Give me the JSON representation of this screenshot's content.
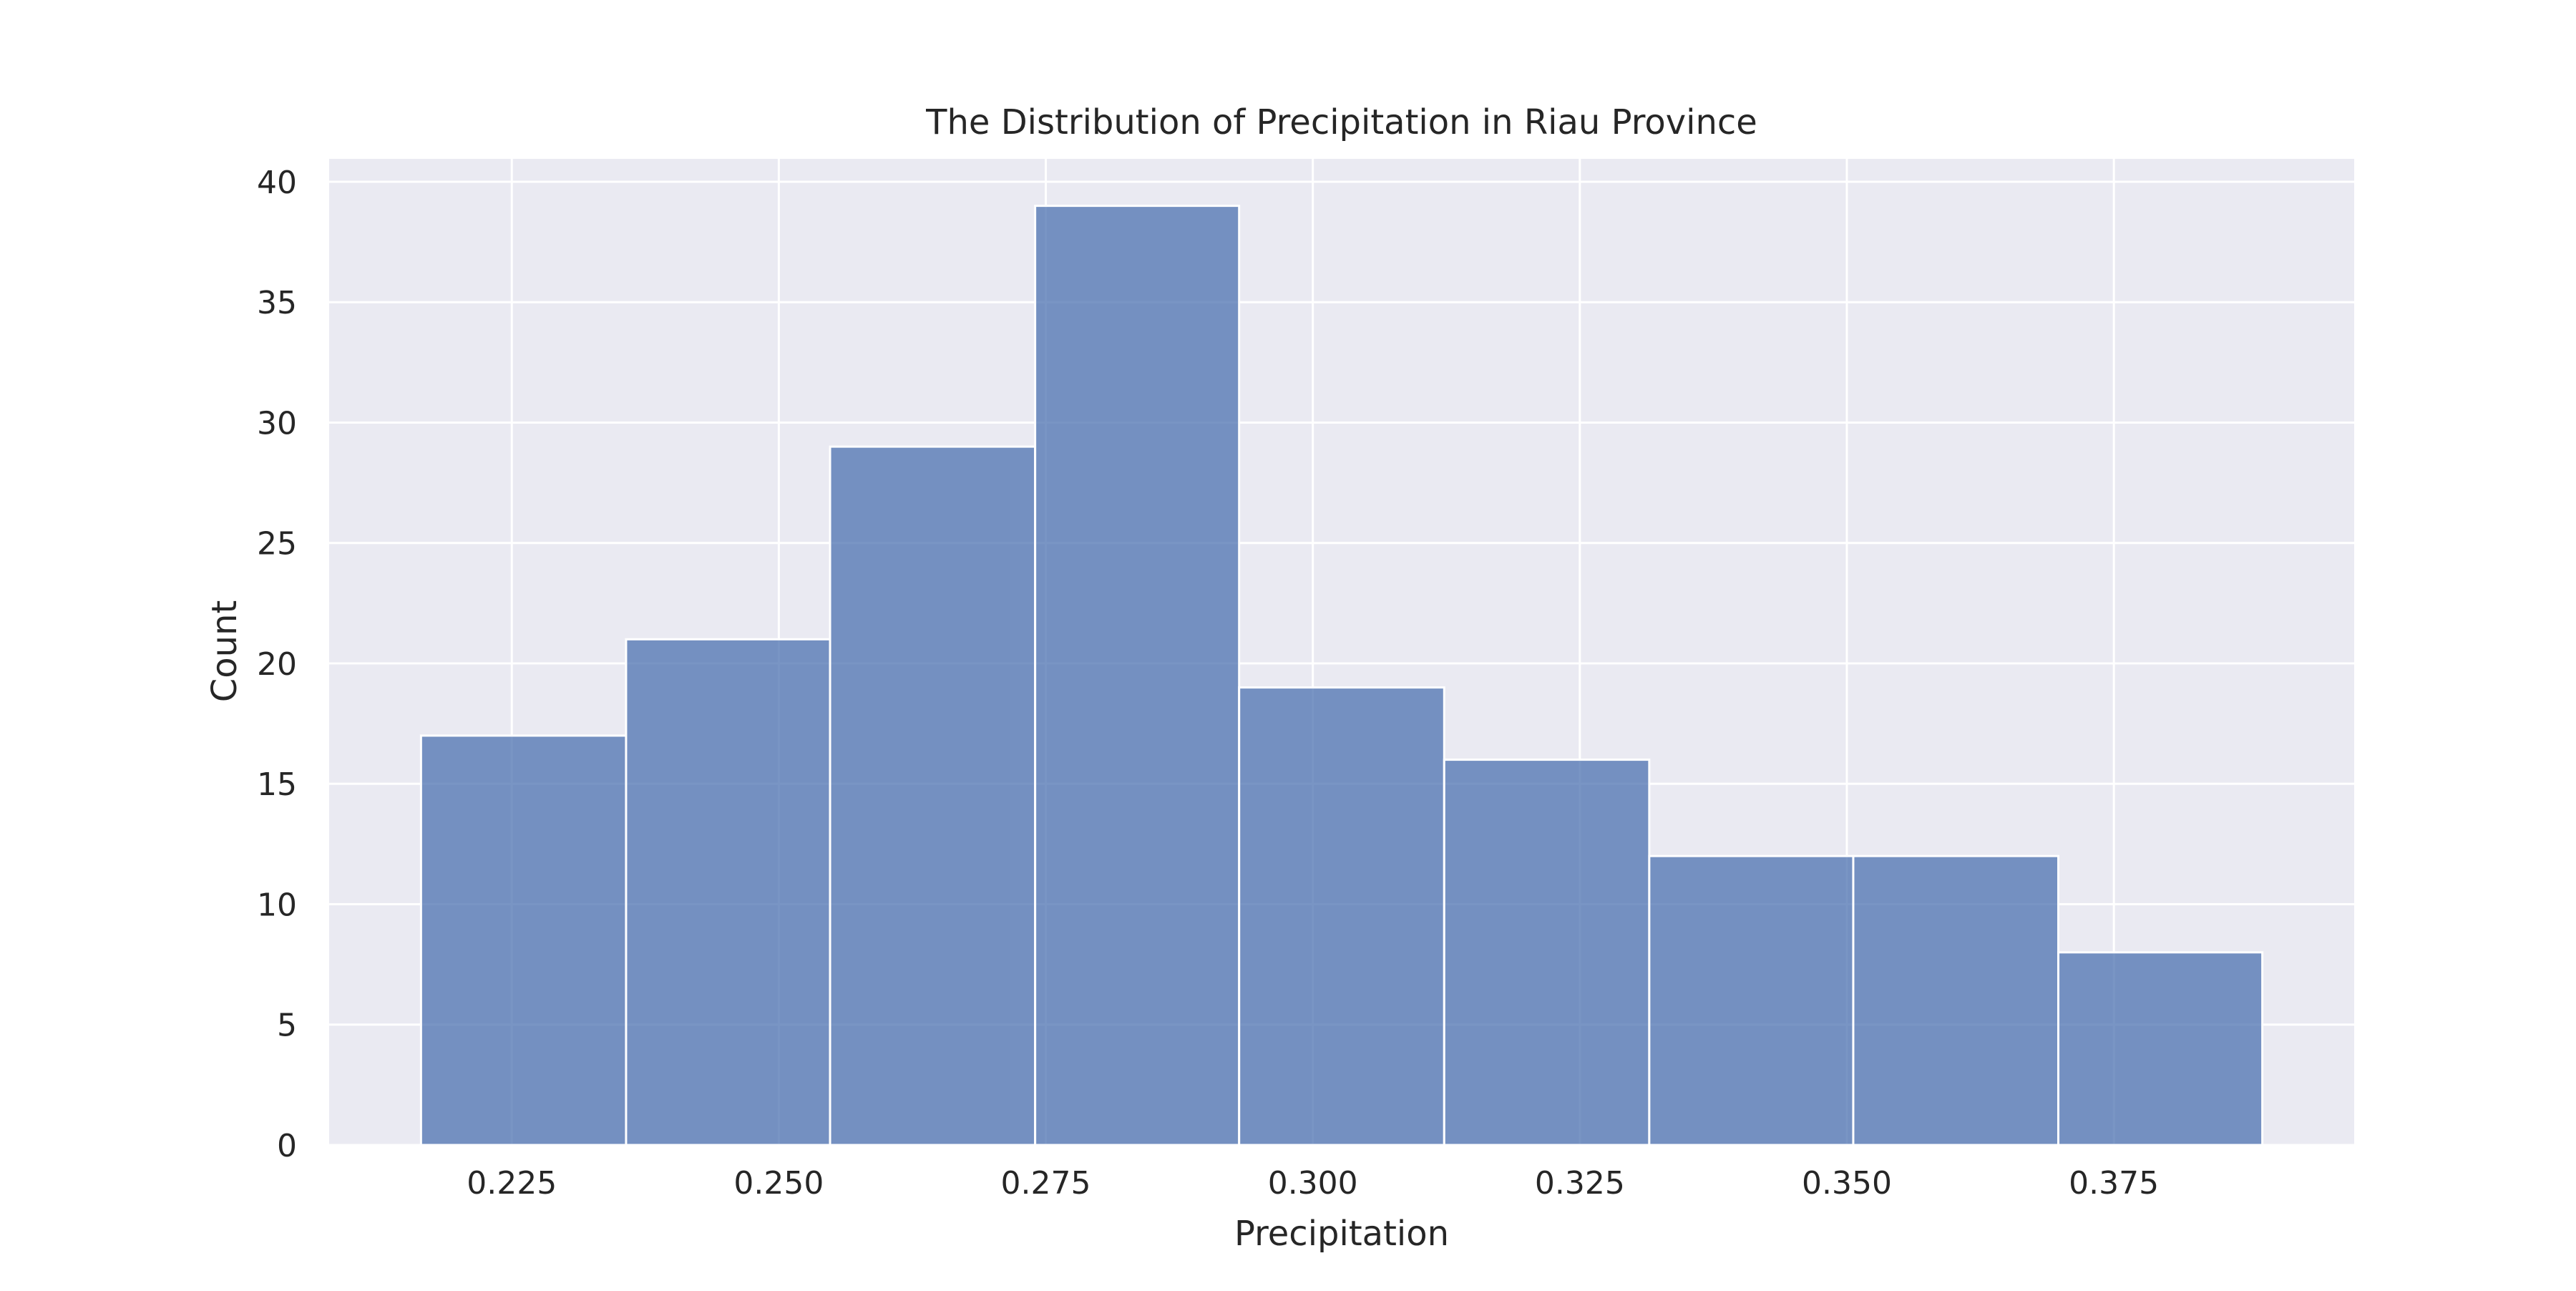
{
  "chart_data": {
    "type": "histogram",
    "title": "The Distribution of Precipitation in Riau Province",
    "xlabel": "Precipitation",
    "ylabel": "Count",
    "bin_edges": [
      0.2165,
      0.2357,
      0.2548,
      0.274,
      0.2931,
      0.3123,
      0.3315,
      0.3506,
      0.3698,
      0.3889
    ],
    "values": [
      17,
      21,
      29,
      39,
      19,
      16,
      12,
      12,
      8
    ],
    "xlim": [
      0.2079,
      0.3975
    ],
    "ylim": [
      0,
      40.95
    ],
    "xticks": [
      {
        "value": 0.225,
        "label": "0.225"
      },
      {
        "value": 0.25,
        "label": "0.250"
      },
      {
        "value": 0.275,
        "label": "0.275"
      },
      {
        "value": 0.3,
        "label": "0.300"
      },
      {
        "value": 0.325,
        "label": "0.325"
      },
      {
        "value": 0.35,
        "label": "0.350"
      },
      {
        "value": 0.375,
        "label": "0.375"
      }
    ],
    "yticks": [
      {
        "value": 0,
        "label": "0"
      },
      {
        "value": 5,
        "label": "5"
      },
      {
        "value": 10,
        "label": "10"
      },
      {
        "value": 15,
        "label": "15"
      },
      {
        "value": 20,
        "label": "20"
      },
      {
        "value": 25,
        "label": "25"
      },
      {
        "value": 30,
        "label": "30"
      },
      {
        "value": 35,
        "label": "35"
      },
      {
        "value": 40,
        "label": "40"
      }
    ],
    "grid": true,
    "colors": {
      "bar": "#4c72b0",
      "plot_background": "#eaeaf2",
      "grid": "#ffffff"
    }
  }
}
